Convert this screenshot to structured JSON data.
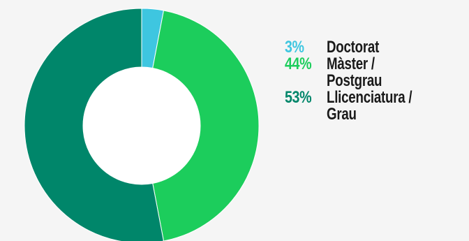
{
  "chart_data": {
    "type": "pie",
    "donut": true,
    "title": "",
    "legend_position": "right",
    "series": [
      {
        "name": "Doctorat",
        "label": "Doctorat",
        "percent_label": "3%",
        "value": 3,
        "color": "#3ec6e0"
      },
      {
        "name": "Màster / Postgrau",
        "label": "Màster /\nPostgrau",
        "percent_label": "44%",
        "value": 44,
        "color": "#1ccd5c"
      },
      {
        "name": "Llicenciatura / Grau",
        "label": "Llicenciatura /\nGrau",
        "percent_label": "53%",
        "value": 53,
        "color": "#00866a"
      }
    ]
  }
}
